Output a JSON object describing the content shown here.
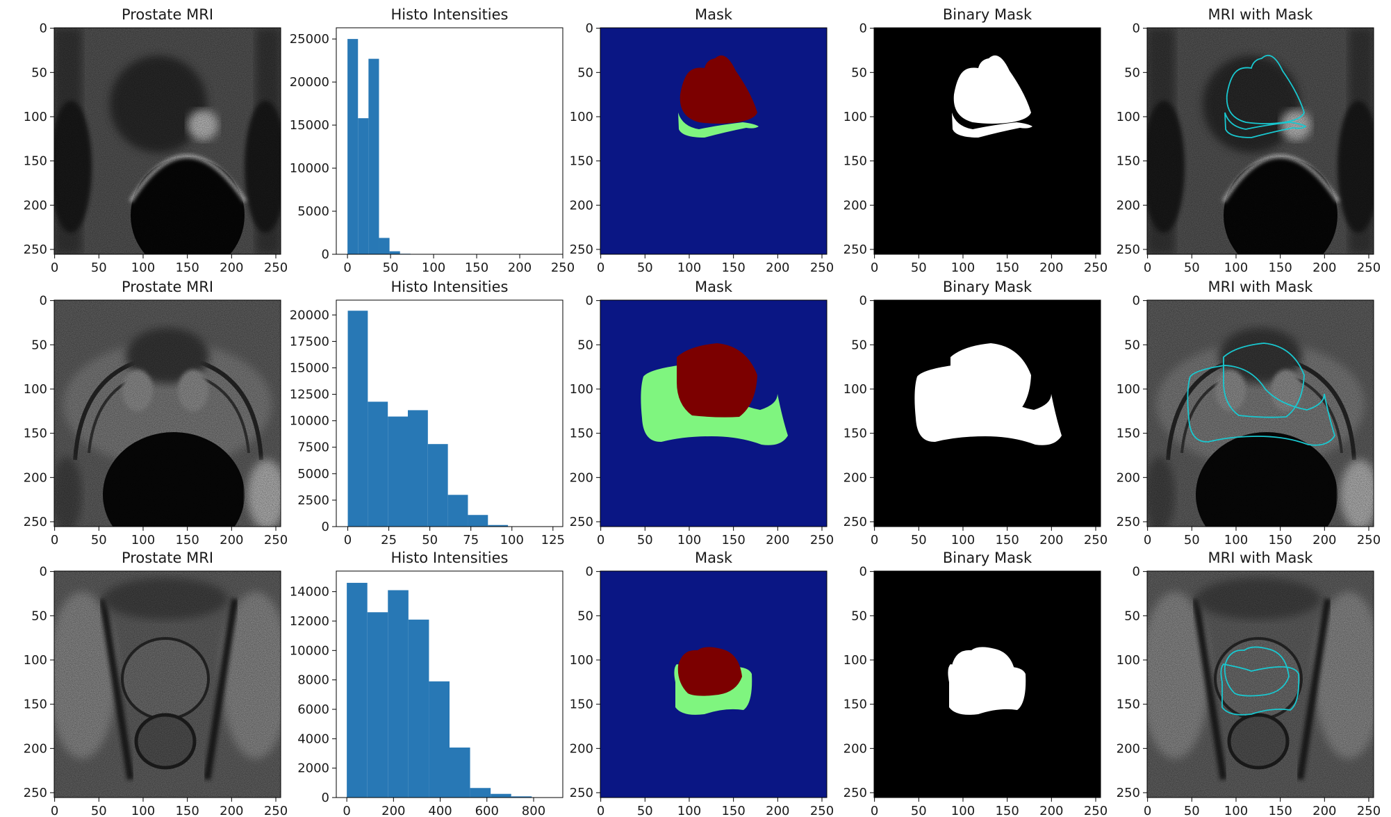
{
  "figure": {
    "rows": [
      {
        "panels": [
          {
            "title": "Prostate MRI",
            "kind": "image",
            "variant": "mri-a"
          },
          {
            "title": "Histo Intensities",
            "kind": "hist"
          },
          {
            "title": "Mask",
            "kind": "image",
            "variant": "mask-a"
          },
          {
            "title": "Binary Mask",
            "kind": "image",
            "variant": "bin-a"
          },
          {
            "title": "MRI with Mask",
            "kind": "image",
            "variant": "overlay-a"
          }
        ]
      },
      {
        "panels": [
          {
            "title": "Prostate MRI",
            "kind": "image",
            "variant": "mri-b"
          },
          {
            "title": "Histo Intensities",
            "kind": "hist"
          },
          {
            "title": "Mask",
            "kind": "image",
            "variant": "mask-b"
          },
          {
            "title": "Binary Mask",
            "kind": "image",
            "variant": "bin-b"
          },
          {
            "title": "MRI with Mask",
            "kind": "image",
            "variant": "overlay-b"
          }
        ]
      },
      {
        "panels": [
          {
            "title": "Prostate MRI",
            "kind": "image",
            "variant": "mri-c"
          },
          {
            "title": "Histo Intensities",
            "kind": "hist"
          },
          {
            "title": "Mask",
            "kind": "image",
            "variant": "mask-c"
          },
          {
            "title": "Binary Mask",
            "kind": "image",
            "variant": "bin-c"
          },
          {
            "title": "MRI with Mask",
            "kind": "image",
            "variant": "overlay-c"
          }
        ]
      }
    ],
    "image_axis": {
      "xticks": [
        0,
        50,
        100,
        150,
        200,
        250
      ],
      "yticks": [
        0,
        50,
        100,
        150,
        200,
        250
      ],
      "range": [
        0,
        256
      ]
    }
  },
  "colors": {
    "bar": "#2878b5",
    "mask_background": "#0a1684",
    "mask_outer": "#7ff57f",
    "mask_inner": "#7c0000",
    "contour": "#19c8d0",
    "binary_bg": "#000000",
    "binary_fg": "#ffffff"
  },
  "chart_data": [
    {
      "type": "bar",
      "title": "Histo Intensities",
      "bin_edges": [
        0,
        12.2,
        24.4,
        36.6,
        48.8,
        61.0,
        73.2,
        85.4,
        97.6,
        109.8,
        122.0
      ],
      "values": [
        25000,
        15800,
        22700,
        1900,
        350,
        60,
        20,
        5,
        2,
        1
      ],
      "xlim": [
        -13,
        250
      ],
      "ylim": [
        0,
        26300
      ],
      "xticks": [
        0,
        50,
        100,
        150,
        200,
        250
      ],
      "yticks": [
        0,
        5000,
        10000,
        15000,
        20000,
        25000
      ]
    },
    {
      "type": "bar",
      "title": "Histo Intensities",
      "bin_edges": [
        0,
        12.2,
        24.4,
        36.6,
        48.8,
        61.0,
        73.2,
        85.4,
        97.6,
        109.8,
        122.0
      ],
      "values": [
        20400,
        11800,
        10400,
        11000,
        7800,
        3000,
        1100,
        150,
        30,
        10
      ],
      "xlim": [
        -7,
        131
      ],
      "ylim": [
        0,
        21400
      ],
      "xticks": [
        0,
        25,
        50,
        75,
        100,
        125
      ],
      "yticks": [
        0,
        2500,
        5000,
        7500,
        10000,
        12500,
        15000,
        17500,
        20000
      ]
    },
    {
      "type": "bar",
      "title": "Histo Intensities",
      "bin_edges": [
        0,
        88,
        176,
        264,
        352,
        440,
        528,
        616,
        704,
        792,
        880
      ],
      "values": [
        14600,
        12600,
        14100,
        12100,
        7900,
        3400,
        650,
        250,
        80,
        20
      ],
      "xlim": [
        -45,
        925
      ],
      "ylim": [
        0,
        15400
      ],
      "xticks": [
        0,
        200,
        400,
        600,
        800
      ],
      "yticks": [
        0,
        2000,
        4000,
        6000,
        8000,
        10000,
        12000,
        14000
      ]
    }
  ]
}
